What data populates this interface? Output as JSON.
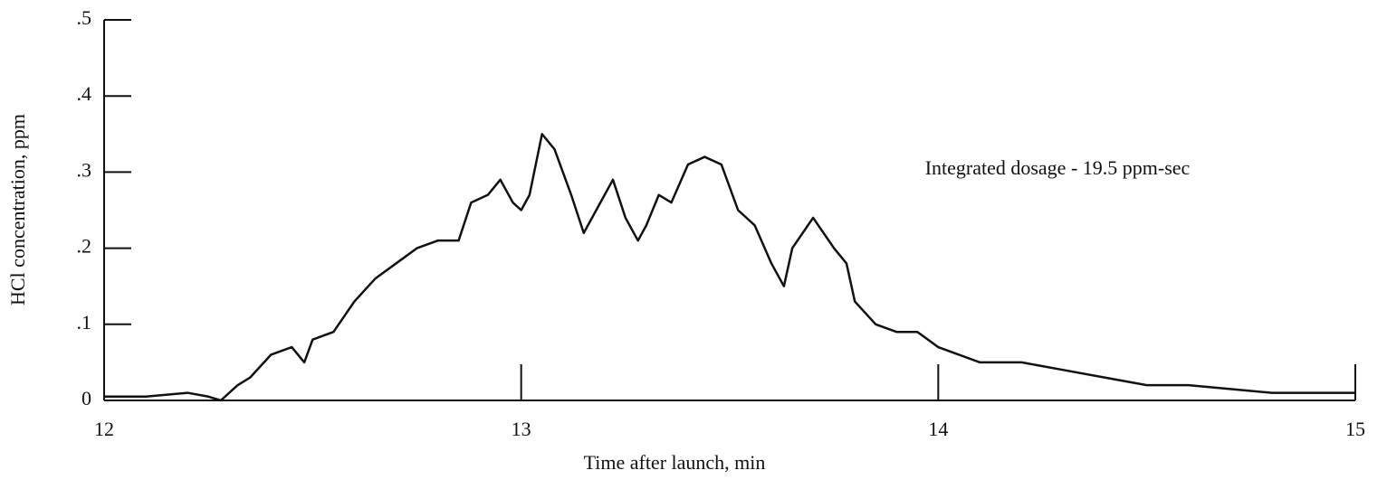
{
  "chart_data": {
    "type": "line",
    "x_label": "Time after launch, min",
    "y_label": "HCl concentration, ppm",
    "annotation": "Integrated dosage - 19.5 ppm-sec",
    "xlim": [
      12,
      15
    ],
    "ylim": [
      0,
      0.5
    ],
    "xticks": [
      12,
      13,
      14,
      15
    ],
    "yticks": [
      0,
      {
        "value": 0.1,
        "label": ".1"
      },
      {
        "value": 0.2,
        "label": ".2"
      },
      {
        "value": 0.3,
        "label": ".3"
      },
      {
        "value": 0.4,
        "label": ".4"
      },
      {
        "value": 0.5,
        "label": ".5"
      }
    ],
    "grid": false,
    "series": [
      {
        "color": "#111111",
        "x": [
          12.0,
          12.1,
          12.2,
          12.25,
          12.28,
          12.32,
          12.35,
          12.4,
          12.45,
          12.48,
          12.5,
          12.55,
          12.6,
          12.65,
          12.7,
          12.75,
          12.8,
          12.85,
          12.88,
          12.92,
          12.95,
          12.98,
          13.0,
          13.02,
          13.05,
          13.08,
          13.12,
          13.15,
          13.18,
          13.22,
          13.25,
          13.28,
          13.3,
          13.33,
          13.36,
          13.4,
          13.44,
          13.48,
          13.52,
          13.56,
          13.6,
          13.63,
          13.65,
          13.7,
          13.75,
          13.78,
          13.8,
          13.85,
          13.9,
          13.95,
          14.0,
          14.1,
          14.2,
          14.3,
          14.4,
          14.5,
          14.6,
          14.7,
          14.8,
          14.9,
          15.0
        ],
        "values": [
          0.005,
          0.005,
          0.01,
          0.005,
          0.0,
          0.02,
          0.03,
          0.06,
          0.07,
          0.05,
          0.08,
          0.09,
          0.13,
          0.16,
          0.18,
          0.2,
          0.21,
          0.21,
          0.26,
          0.27,
          0.29,
          0.26,
          0.25,
          0.27,
          0.35,
          0.33,
          0.27,
          0.22,
          0.25,
          0.29,
          0.24,
          0.21,
          0.23,
          0.27,
          0.26,
          0.31,
          0.32,
          0.31,
          0.25,
          0.23,
          0.18,
          0.15,
          0.2,
          0.24,
          0.2,
          0.18,
          0.13,
          0.1,
          0.09,
          0.09,
          0.07,
          0.05,
          0.05,
          0.04,
          0.03,
          0.02,
          0.02,
          0.015,
          0.01,
          0.01,
          0.01
        ]
      }
    ]
  }
}
